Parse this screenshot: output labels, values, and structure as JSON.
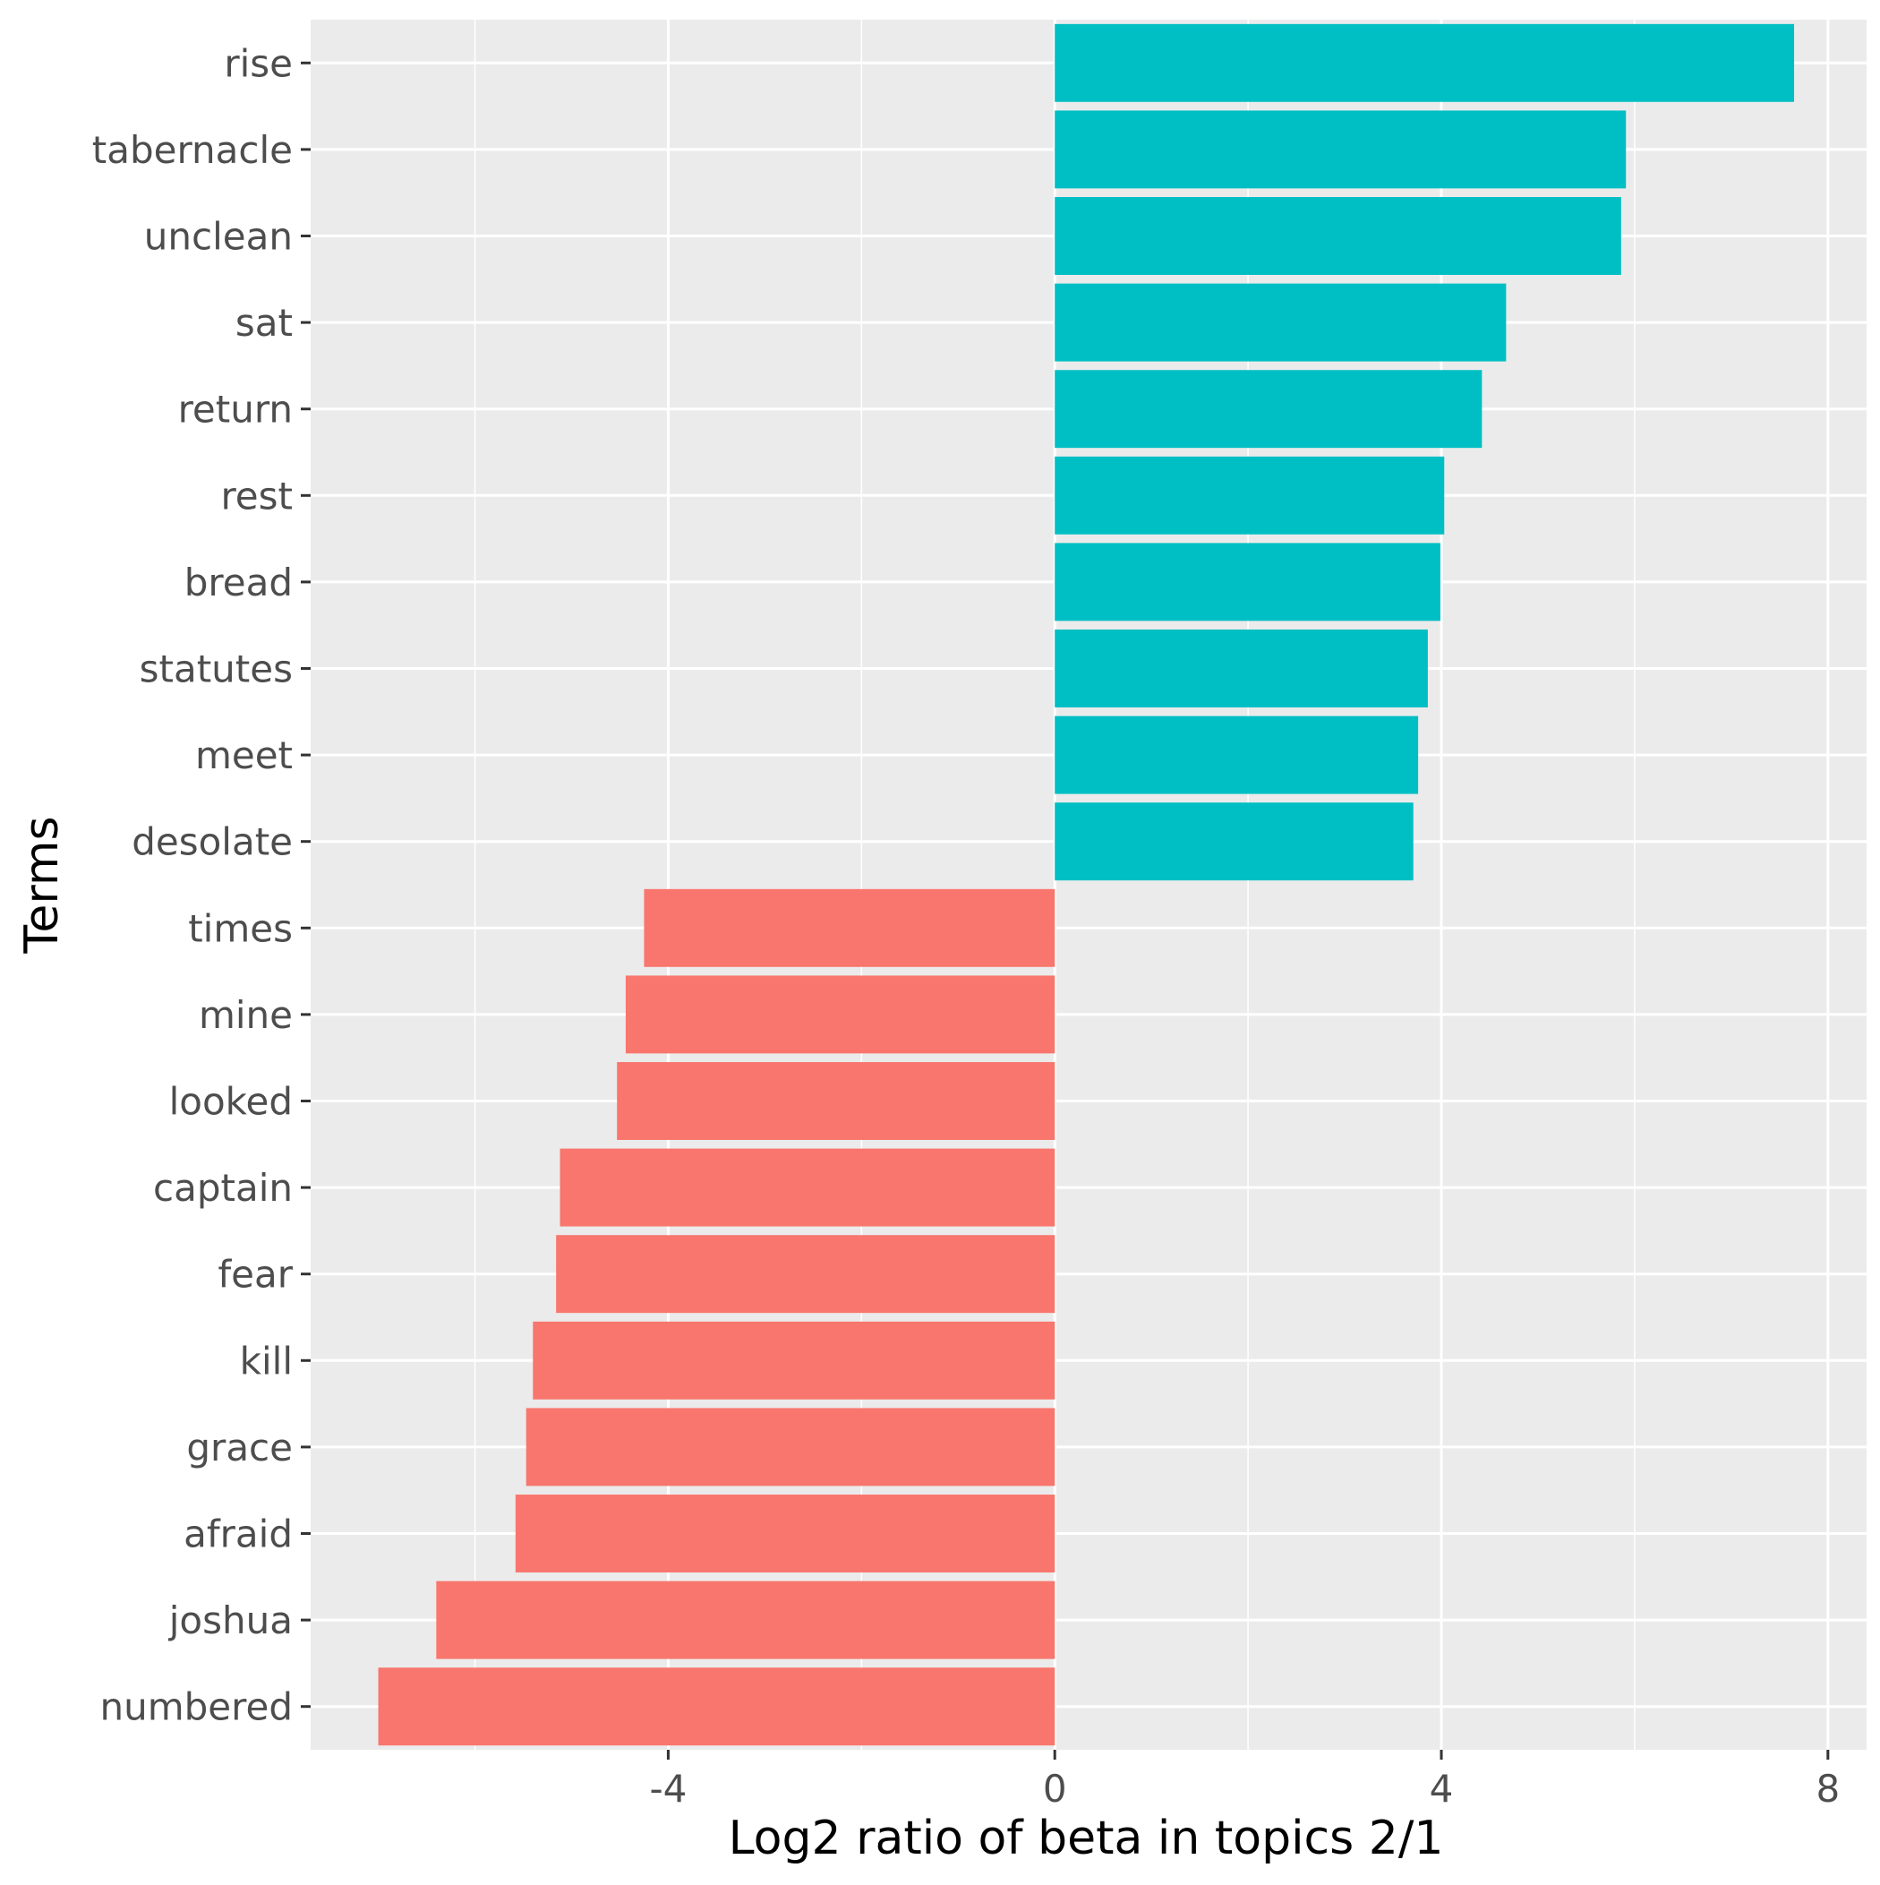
{
  "chart_data": {
    "type": "bar",
    "orientation": "horizontal",
    "title": "",
    "xlabel": "Log2 ratio of beta in topics 2/1",
    "ylabel": "Terms",
    "xlim": [
      -7.7,
      8.4
    ],
    "xticks": [
      -4,
      0,
      4,
      8
    ],
    "xtick_labels": [
      "-4",
      "0",
      "4",
      "8"
    ],
    "grid": true,
    "legend": "none",
    "colors": {
      "positive": "#00BFC4",
      "negative": "#F8766D",
      "panel": "#EBEBEB",
      "grid": "#FFFFFF"
    },
    "categories": [
      "rise",
      "tabernacle",
      "unclean",
      "sat",
      "return",
      "rest",
      "bread",
      "statutes",
      "meet",
      "desolate",
      "times",
      "mine",
      "looked",
      "captain",
      "fear",
      "kill",
      "grace",
      "afraid",
      "joshua",
      "numbered"
    ],
    "values": [
      7.65,
      5.91,
      5.86,
      4.67,
      4.42,
      4.03,
      3.99,
      3.86,
      3.76,
      3.71,
      -4.25,
      -4.44,
      -4.53,
      -5.12,
      -5.16,
      -5.4,
      -5.47,
      -5.58,
      -6.4,
      -7.0
    ]
  }
}
